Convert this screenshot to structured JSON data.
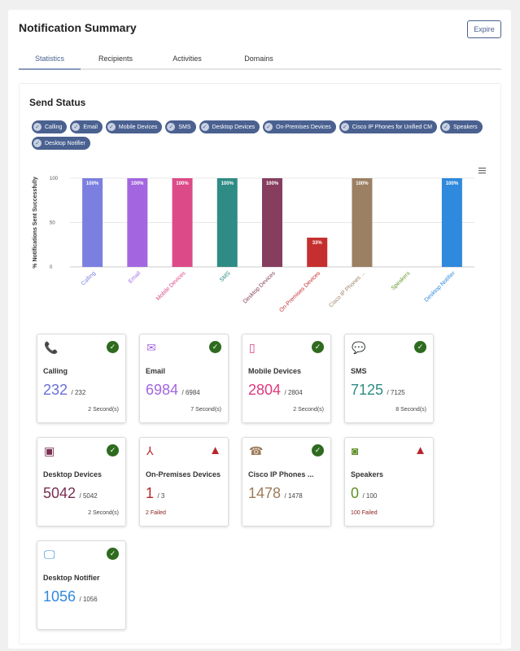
{
  "header": {
    "title": "Notification Summary",
    "expire_label": "Expire"
  },
  "tabs": [
    {
      "label": "Statistics",
      "active": true
    },
    {
      "label": "Recipients"
    },
    {
      "label": "Activities"
    },
    {
      "label": "Domains"
    }
  ],
  "send_status": {
    "title": "Send Status",
    "filters": [
      "Calling",
      "Email",
      "Mobile Devices",
      "SMS",
      "Desktop Devices",
      "On-Premises Devices",
      "Cisco IP Phones for Unified CM",
      "Speakers",
      "Desktop Notifier"
    ]
  },
  "chart_data": {
    "type": "bar",
    "ylabel": "% Notifications Sent Successfully",
    "ylim": [
      0,
      100
    ],
    "yticks": [
      0,
      50,
      100
    ],
    "grid": true,
    "categories": [
      "Calling",
      "Email",
      "Mobile Devices",
      "SMS",
      "Desktop Devices",
      "On-Premises Devices",
      "Cisco IP Phones ...",
      "Speakers",
      "Desktop Notifier"
    ],
    "values": [
      100,
      100,
      100,
      100,
      100,
      33,
      100,
      0,
      100
    ],
    "data_labels": [
      "100%",
      "100%",
      "100%",
      "100%",
      "100%",
      "33%",
      "100%",
      "",
      "100%"
    ],
    "colors": [
      "#7b7fdf",
      "#a366e0",
      "#dd4a88",
      "#2f8c85",
      "#873e5e",
      "#c62f2f",
      "#9c8064",
      "#6a9a2f",
      "#2f89dc"
    ]
  },
  "tiles": [
    {
      "name": "Calling",
      "icon": "phone-icon",
      "sent": "232",
      "total": "/ 232",
      "foot": "2 Second(s)",
      "status": "success",
      "color": "#6a6fd9"
    },
    {
      "name": "Email",
      "icon": "envelope-icon",
      "sent": "6984",
      "total": "/ 6984",
      "foot": "7 Second(s)",
      "status": "success",
      "color": "#a366e0"
    },
    {
      "name": "Mobile Devices",
      "icon": "mobile-device-icon",
      "sent": "2804",
      "total": "/ 2804",
      "foot": "2 Second(s)",
      "status": "success",
      "color": "#dd3a7e"
    },
    {
      "name": "SMS",
      "icon": "sms-icon",
      "sent": "7125",
      "total": "/ 7125",
      "foot": "8 Second(s)",
      "status": "success",
      "color": "#2f8c85"
    },
    {
      "name": "Desktop Devices",
      "icon": "desktop-device-icon",
      "sent": "5042",
      "total": "/ 5042",
      "foot": "2 Second(s)",
      "status": "success",
      "color": "#7a2e50"
    },
    {
      "name": "On-Premises Devices",
      "icon": "network-icon",
      "sent": "1",
      "total": "/ 3",
      "foot": "2 Failed",
      "status": "warning",
      "color": "#b8262b"
    },
    {
      "name": "Cisco IP Phones ...",
      "icon": "ip-phone-icon",
      "sent": "1478",
      "total": "/ 1478",
      "foot": "",
      "status": "success",
      "color": "#9c7b5a"
    },
    {
      "name": "Speakers",
      "icon": "speaker-icon",
      "sent": "0",
      "total": "/ 100",
      "foot": "100 Failed",
      "status": "warning",
      "color": "#5e8f27"
    },
    {
      "name": "Desktop Notifier",
      "icon": "desktop-notifier-icon",
      "sent": "1056",
      "total": "/ 1056",
      "foot": "",
      "status": "success",
      "color": "#2f89dc"
    }
  ]
}
